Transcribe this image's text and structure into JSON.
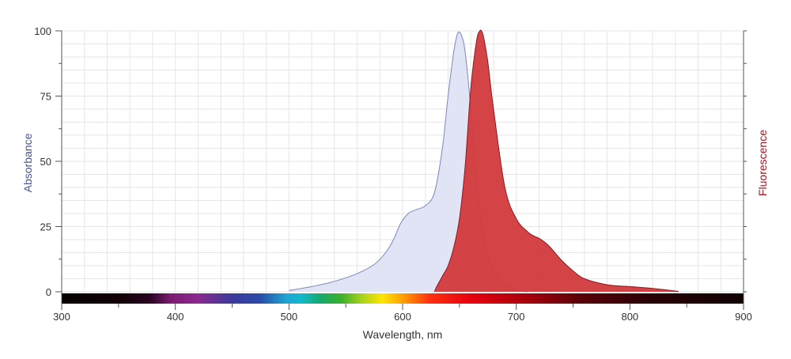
{
  "chart_data": {
    "type": "area",
    "xlabel": "Wavelength, nm",
    "ylabel": "Absorbance",
    "ylabel_right": "Fluorescence",
    "xlim": [
      300,
      900
    ],
    "ylim": [
      0,
      100
    ],
    "xticks": [
      300,
      400,
      500,
      600,
      700,
      800,
      900
    ],
    "yticks": [
      0,
      25,
      50,
      75,
      100
    ],
    "grid": true,
    "colors": {
      "absorbance_fill": "#e1e4f4",
      "absorbance_line": "#7d86bf",
      "fluorescence_fill": "#d23a3c",
      "fluorescence_line": "#8c1a1f",
      "absorbance_label": "#4a5291",
      "fluorescence_label": "#a3141b",
      "grid": "#e6e6e6"
    },
    "series": [
      {
        "key": "absorbance",
        "x": [
          500,
          520,
          540,
          560,
          575,
          585,
          592,
          598,
          605,
          612,
          620,
          628,
          635,
          640,
          645,
          648,
          650,
          652,
          655,
          660,
          665,
          670,
          675,
          680,
          690,
          700,
          710
        ],
        "values": [
          0.5,
          2,
          4,
          7,
          10.5,
          15,
          20,
          26,
          30,
          31.5,
          33,
          38,
          55,
          75,
          92,
          98.5,
          99.5,
          98,
          92,
          70,
          42,
          24,
          14,
          8,
          3,
          0.8,
          0
        ]
      },
      {
        "key": "fluorescence",
        "x": [
          628,
          630,
          635,
          640,
          645,
          650,
          655,
          660,
          665,
          668,
          670,
          672,
          675,
          680,
          690,
          700,
          710,
          715,
          720,
          725,
          730,
          740,
          750,
          760,
          780,
          800,
          820,
          840,
          843
        ],
        "values": [
          0,
          2,
          6,
          10,
          17,
          28,
          48,
          78,
          96,
          100,
          99.5,
          96,
          88,
          70,
          40,
          28,
          23,
          21.5,
          20.5,
          19,
          17,
          12,
          8,
          5,
          2.7,
          2,
          1.3,
          0.3,
          0
        ]
      }
    ]
  }
}
